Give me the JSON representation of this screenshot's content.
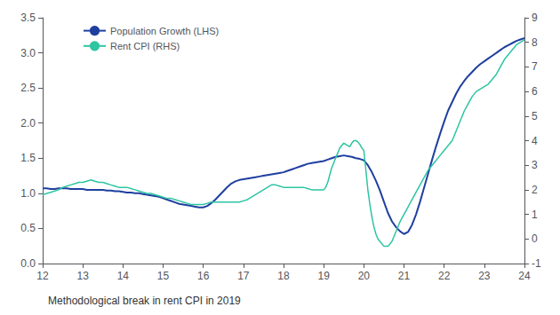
{
  "chart_data": {
    "type": "line",
    "annotation": "Methodological break in rent CPI in 2019",
    "legend": "upper left",
    "grid": false,
    "xlim": [
      12,
      24
    ],
    "xticks": [
      12,
      13,
      14,
      15,
      16,
      17,
      18,
      19,
      20,
      21,
      22,
      23,
      24
    ],
    "ylim": [
      0.0,
      3.5
    ],
    "yticks": [
      {
        "value": 0,
        "label": "0.0"
      },
      0.5,
      {
        "value": 1,
        "label": "1.0"
      },
      1.5,
      {
        "value": 2,
        "label": "2.0"
      },
      2.5,
      {
        "value": 3,
        "label": "3.0"
      },
      3.5
    ],
    "y2lim": [
      -1,
      9
    ],
    "y2ticks": [
      -1,
      0,
      1,
      2,
      3,
      4,
      5,
      6,
      7,
      8,
      9
    ],
    "series": [
      {
        "name": "Population Growth (LHS)",
        "color": "#1f3f9f",
        "axis": "y",
        "x": [
          12.0,
          12.1,
          12.2,
          12.3,
          12.4,
          12.5,
          12.6,
          12.7,
          12.8,
          12.9,
          13.0,
          13.1,
          13.2,
          13.3,
          13.4,
          13.5,
          13.6,
          13.7,
          13.8,
          13.9,
          14.0,
          14.1,
          14.2,
          14.3,
          14.4,
          14.5,
          14.6,
          14.7,
          14.8,
          14.9,
          15.0,
          15.1,
          15.2,
          15.3,
          15.4,
          15.5,
          15.6,
          15.7,
          15.8,
          15.9,
          16.0,
          16.1,
          16.2,
          16.3,
          16.4,
          16.5,
          16.6,
          16.7,
          16.8,
          16.9,
          17.0,
          17.1,
          17.2,
          17.3,
          17.4,
          17.5,
          17.6,
          17.7,
          17.8,
          17.9,
          18.0,
          18.1,
          18.2,
          18.3,
          18.4,
          18.5,
          18.6,
          18.7,
          18.8,
          18.9,
          19.0,
          19.1,
          19.2,
          19.3,
          19.4,
          19.5,
          19.6,
          19.7,
          19.8,
          19.9,
          20.0,
          20.1,
          20.2,
          20.3,
          20.4,
          20.5,
          20.6,
          20.7,
          20.8,
          20.9,
          21.0,
          21.1,
          21.2,
          21.3,
          21.4,
          21.5,
          21.6,
          21.7,
          21.8,
          21.9,
          22.0,
          22.1,
          22.2,
          22.3,
          22.4,
          22.5,
          22.6,
          22.7,
          22.8,
          22.9,
          23.0,
          23.1,
          23.2,
          23.3,
          23.4,
          23.5,
          23.6,
          23.7,
          23.8,
          23.9,
          24.0
        ],
        "values": [
          1.07,
          1.07,
          1.06,
          1.06,
          1.07,
          1.07,
          1.07,
          1.06,
          1.06,
          1.06,
          1.06,
          1.05,
          1.05,
          1.05,
          1.05,
          1.05,
          1.04,
          1.04,
          1.03,
          1.03,
          1.02,
          1.01,
          1.01,
          1.0,
          1.0,
          0.99,
          0.98,
          0.97,
          0.96,
          0.95,
          0.93,
          0.91,
          0.89,
          0.87,
          0.85,
          0.84,
          0.83,
          0.82,
          0.81,
          0.8,
          0.8,
          0.82,
          0.86,
          0.91,
          0.97,
          1.03,
          1.09,
          1.14,
          1.17,
          1.19,
          1.2,
          1.21,
          1.22,
          1.23,
          1.24,
          1.25,
          1.26,
          1.27,
          1.28,
          1.29,
          1.3,
          1.32,
          1.34,
          1.36,
          1.38,
          1.4,
          1.42,
          1.43,
          1.44,
          1.45,
          1.46,
          1.48,
          1.5,
          1.52,
          1.53,
          1.54,
          1.53,
          1.52,
          1.5,
          1.49,
          1.47,
          1.4,
          1.3,
          1.18,
          1.04,
          0.88,
          0.72,
          0.6,
          0.52,
          0.46,
          0.42,
          0.45,
          0.55,
          0.7,
          0.88,
          1.08,
          1.28,
          1.48,
          1.67,
          1.85,
          2.02,
          2.18,
          2.3,
          2.42,
          2.52,
          2.6,
          2.67,
          2.73,
          2.79,
          2.84,
          2.88,
          2.92,
          2.96,
          3.0,
          3.04,
          3.08,
          3.11,
          3.14,
          3.17,
          3.19,
          3.21
        ]
      },
      {
        "name": "Rent CPI (RHS)",
        "color": "#2dc5a2",
        "axis": "y2",
        "x": [
          12.0,
          12.1,
          12.2,
          12.3,
          12.4,
          12.5,
          12.6,
          12.7,
          12.8,
          12.9,
          13.0,
          13.1,
          13.2,
          13.3,
          13.4,
          13.5,
          13.6,
          13.7,
          13.8,
          13.9,
          14.0,
          14.1,
          14.2,
          14.3,
          14.4,
          14.5,
          14.6,
          14.7,
          14.8,
          14.9,
          15.0,
          15.1,
          15.2,
          15.3,
          15.4,
          15.5,
          15.6,
          15.7,
          15.8,
          15.9,
          16.0,
          16.1,
          16.2,
          16.3,
          16.4,
          16.5,
          16.6,
          16.7,
          16.8,
          16.9,
          17.0,
          17.1,
          17.2,
          17.3,
          17.4,
          17.5,
          17.6,
          17.7,
          17.8,
          17.9,
          18.0,
          18.1,
          18.2,
          18.3,
          18.4,
          18.5,
          18.6,
          18.7,
          18.8,
          18.9,
          19.0,
          19.0,
          19.05,
          19.1,
          19.15,
          19.2,
          19.25,
          19.3,
          19.35,
          19.4,
          19.45,
          19.5,
          19.55,
          19.6,
          19.65,
          19.7,
          19.75,
          19.8,
          19.85,
          19.9,
          19.95,
          20.0,
          20.05,
          20.1,
          20.15,
          20.2,
          20.25,
          20.3,
          20.35,
          20.4,
          20.5,
          20.6,
          20.7,
          20.8,
          20.9,
          21.0,
          21.1,
          21.2,
          21.3,
          21.4,
          21.5,
          21.6,
          21.7,
          21.8,
          21.9,
          22.0,
          22.1,
          22.2,
          22.3,
          22.4,
          22.5,
          22.6,
          22.7,
          22.8,
          22.9,
          23.0,
          23.1,
          23.2,
          23.3,
          23.4,
          23.5,
          23.6,
          23.7,
          23.8,
          23.9,
          24.0
        ],
        "values": [
          1.8,
          1.85,
          1.9,
          1.95,
          2.0,
          2.1,
          2.15,
          2.2,
          2.25,
          2.3,
          2.3,
          2.35,
          2.4,
          2.35,
          2.3,
          2.3,
          2.25,
          2.2,
          2.15,
          2.1,
          2.1,
          2.1,
          2.05,
          2.0,
          1.95,
          1.9,
          1.85,
          1.85,
          1.8,
          1.75,
          1.7,
          1.65,
          1.65,
          1.6,
          1.55,
          1.5,
          1.45,
          1.4,
          1.4,
          1.4,
          1.4,
          1.45,
          1.5,
          1.5,
          1.5,
          1.5,
          1.5,
          1.5,
          1.5,
          1.5,
          1.55,
          1.6,
          1.7,
          1.8,
          1.9,
          2.0,
          2.1,
          2.2,
          2.2,
          2.15,
          2.1,
          2.1,
          2.1,
          2.1,
          2.1,
          2.1,
          2.05,
          2.0,
          2.0,
          2.0,
          2.0,
          2.0,
          2.1,
          2.3,
          2.6,
          2.9,
          3.1,
          3.3,
          3.5,
          3.7,
          3.8,
          3.9,
          3.85,
          3.8,
          3.75,
          3.9,
          4.0,
          4.0,
          3.95,
          3.85,
          3.7,
          3.6,
          2.8,
          2.0,
          1.4,
          0.9,
          0.5,
          0.2,
          0.0,
          -0.1,
          -0.3,
          -0.3,
          -0.1,
          0.3,
          0.7,
          1.0,
          1.3,
          1.6,
          1.9,
          2.2,
          2.5,
          2.8,
          3.0,
          3.2,
          3.4,
          3.6,
          3.8,
          4.0,
          4.4,
          4.8,
          5.2,
          5.5,
          5.8,
          6.0,
          6.1,
          6.2,
          6.3,
          6.5,
          6.7,
          7.0,
          7.3,
          7.5,
          7.7,
          7.9,
          8.0,
          8.1
        ]
      }
    ]
  }
}
